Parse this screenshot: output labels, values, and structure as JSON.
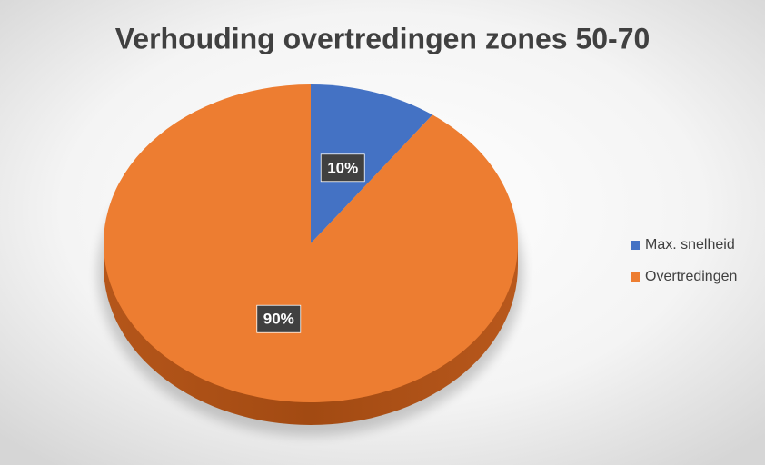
{
  "chart_data": {
    "type": "pie",
    "title": "Verhouding overtredingen zones 50-70",
    "categories": [
      "Max. snelheid",
      "Overtredingen"
    ],
    "values": [
      10,
      90
    ],
    "value_labels": [
      "10%",
      "90%"
    ],
    "colors": [
      "#4472c4",
      "#ed7d31"
    ],
    "legend": "right"
  }
}
